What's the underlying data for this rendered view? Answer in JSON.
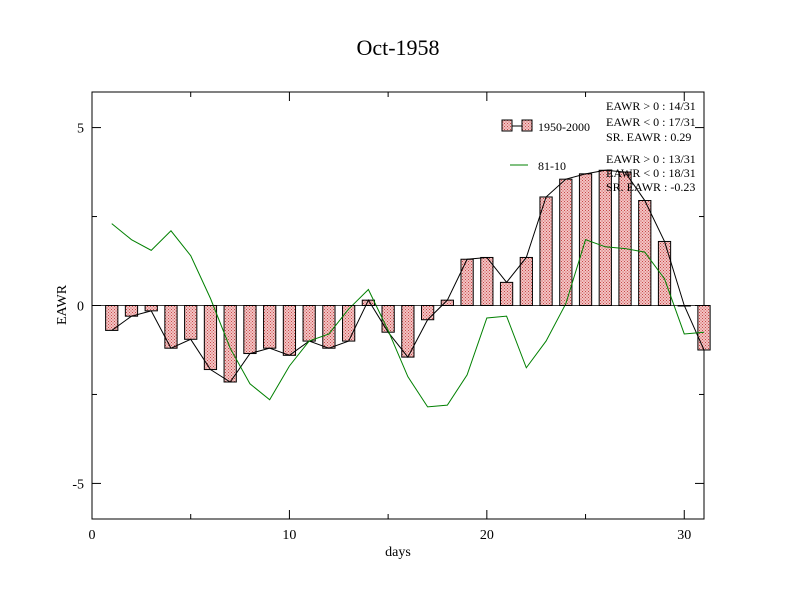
{
  "chart_data": {
    "type": "bar",
    "title": "Oct-1958",
    "xlabel": "days",
    "ylabel": "EAWR",
    "xlim": [
      0,
      31
    ],
    "ylim": [
      -6,
      6
    ],
    "x_ticks": [
      0,
      10,
      20,
      30
    ],
    "y_ticks": [
      -5,
      0,
      5
    ],
    "x_tick_labels": [
      "0",
      "10",
      "20",
      "30"
    ],
    "y_tick_labels": [
      "-5",
      "0",
      "5"
    ],
    "grid": false,
    "legend_position": "top-right",
    "colors": {
      "bar_fill": "#e8a0a0",
      "bar_stroke": "#000000",
      "bar_line": "#000000",
      "climatology_line": "#008000"
    },
    "days": [
      1,
      2,
      3,
      4,
      5,
      6,
      7,
      8,
      9,
      10,
      11,
      12,
      13,
      14,
      15,
      16,
      17,
      18,
      19,
      20,
      21,
      22,
      23,
      24,
      25,
      26,
      27,
      28,
      29,
      30,
      31
    ],
    "series": [
      {
        "name": "1950-2000",
        "kind": "bar+line",
        "values": [
          -0.7,
          -0.3,
          -0.15,
          -1.2,
          -0.95,
          -1.8,
          -2.15,
          -1.35,
          -1.2,
          -1.4,
          -1.0,
          -1.2,
          -1.0,
          0.15,
          -0.75,
          -1.45,
          -0.4,
          0.15,
          1.3,
          1.35,
          0.65,
          1.35,
          3.05,
          3.55,
          3.7,
          3.8,
          3.75,
          2.95,
          1.8,
          0.0,
          -1.25
        ]
      },
      {
        "name": "81-10",
        "kind": "line",
        "values": [
          2.3,
          1.85,
          1.55,
          2.1,
          1.4,
          0.2,
          -1.2,
          -2.2,
          -2.65,
          -1.7,
          -1.0,
          -0.8,
          -0.1,
          0.45,
          -0.7,
          -2.0,
          -2.85,
          -2.8,
          -1.95,
          -0.35,
          -0.3,
          -1.75,
          -1.0,
          0.05,
          1.85,
          1.65,
          1.6,
          1.5,
          0.75,
          -0.8,
          -0.75
        ]
      }
    ],
    "annotations": {
      "series1": [
        "EAWR > 0 : 14/31",
        "EAWR < 0 : 17/31",
        "SR. EAWR :  0.29"
      ],
      "series2": [
        "EAWR > 0 : 13/31",
        "EAWR < 0 : 18/31",
        "SR. EAWR : -0.23"
      ]
    }
  }
}
